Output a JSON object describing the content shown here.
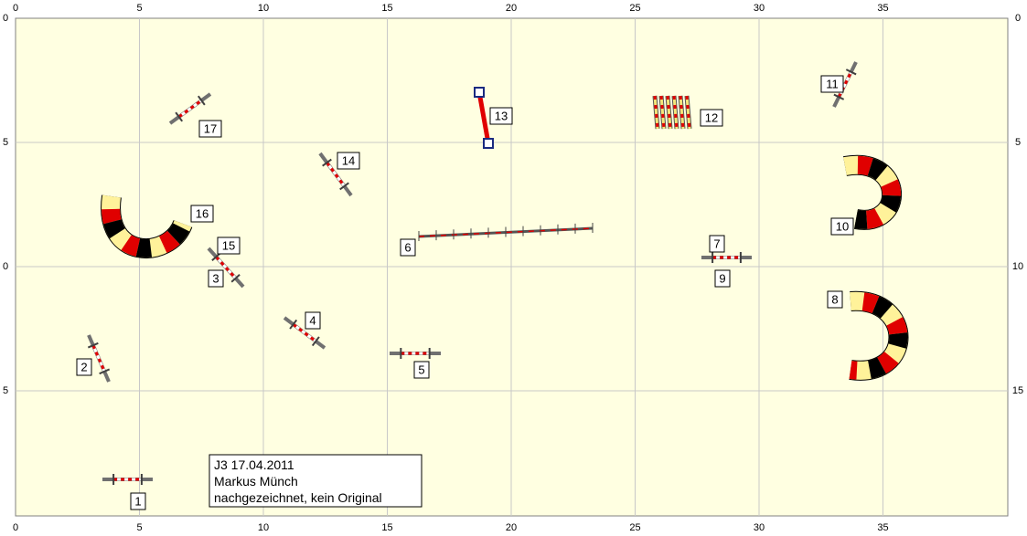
{
  "axes": {
    "top": [
      "0",
      "5",
      "10",
      "15",
      "20",
      "25",
      "30",
      "35"
    ],
    "bottom": [
      "0",
      "5",
      "10",
      "15",
      "20",
      "25",
      "30",
      "35"
    ],
    "left": [
      "0",
      "5",
      "0",
      "5"
    ],
    "right": [
      "0",
      "5",
      "10",
      "15"
    ]
  },
  "obstacles": [
    "1",
    "2",
    "3",
    "4",
    "5",
    "6",
    "7",
    "8",
    "9",
    "10",
    "11",
    "12",
    "13",
    "14",
    "15",
    "16",
    "17"
  ],
  "info": [
    "J3 17.04.2011",
    "Markus Münch",
    "nachgezeichnet, kein Original"
  ]
}
